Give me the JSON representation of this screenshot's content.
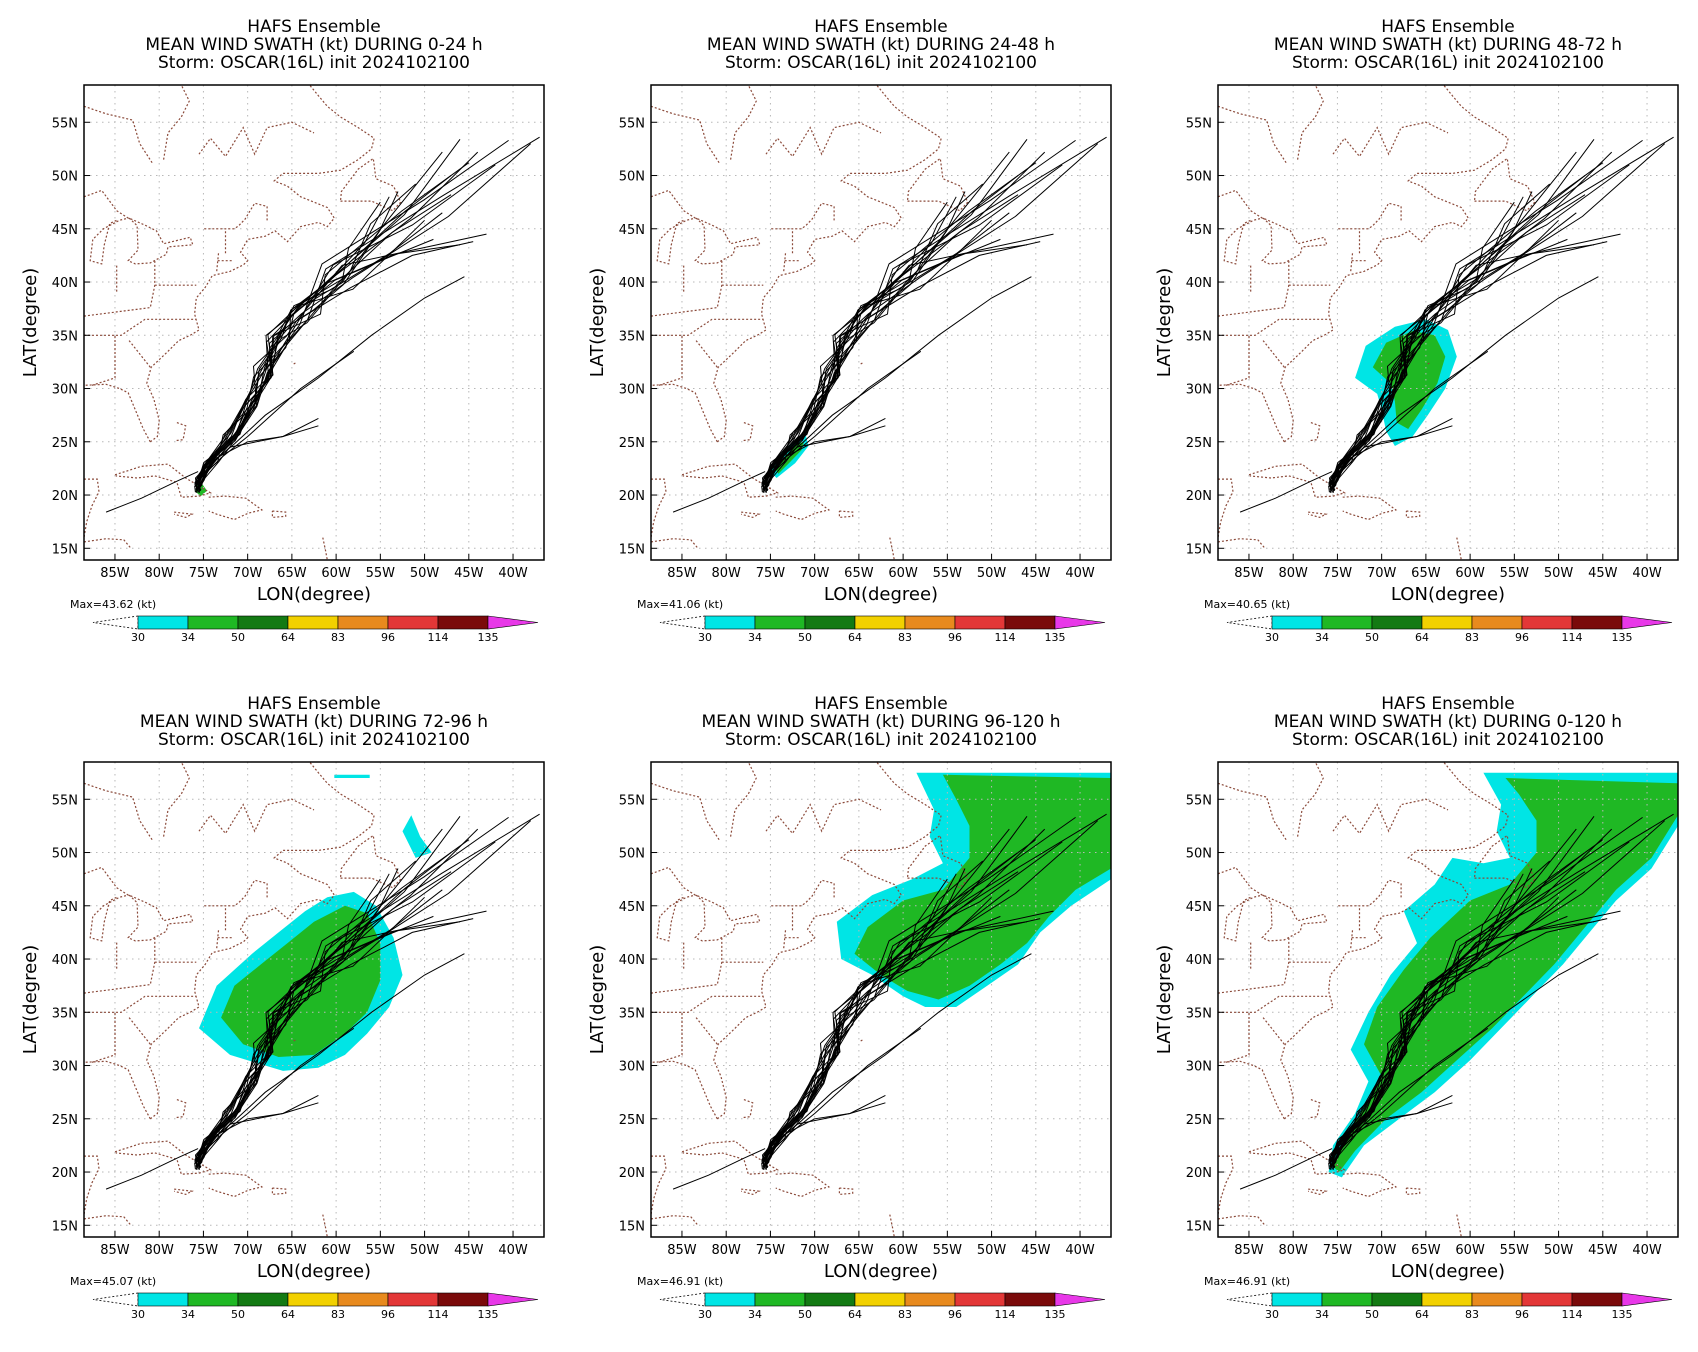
{
  "chart_data": [
    {
      "type": "heatmap",
      "title_lines": [
        "HAFS Ensemble",
        "MEAN WIND SWATH (kt) DURING  0-24 h",
        "Storm: OSCAR(16L) init 2024102100"
      ],
      "xlabel": "LON(degree)",
      "ylabel": "LAT(degree)",
      "xlim": [
        -88.5,
        -36.5
      ],
      "ylim": [
        13.9,
        58.5
      ],
      "xticks": [
        -85,
        -80,
        -75,
        -70,
        -65,
        -60,
        -55,
        -50,
        -45,
        -40
      ],
      "xtick_labels": [
        "85W",
        "80W",
        "75W",
        "70W",
        "65W",
        "60W",
        "55W",
        "50W",
        "45W",
        "40W"
      ],
      "yticks": [
        15,
        20,
        25,
        30,
        35,
        40,
        45,
        50,
        55
      ],
      "ytick_labels": [
        "15N",
        "20N",
        "25N",
        "30N",
        "35N",
        "40N",
        "45N",
        "50N",
        "55N"
      ],
      "max_label": "Max=43.62 (kt)",
      "colorbar_levels": [
        "30",
        "34",
        "50",
        "64",
        "83",
        "96",
        "114",
        "135"
      ],
      "colorbar_colors": [
        "#00e5e5",
        "#1fb824",
        "#137a13",
        "#f2d100",
        "#e88a1e",
        "#e33737",
        "#7a0a0a",
        "#e838e8"
      ],
      "swath_34": [
        [
          -75.8,
          20.9
        ],
        [
          -75.2,
          21.1
        ],
        [
          -74.6,
          20.4
        ],
        [
          -75.3,
          19.9
        ],
        [
          -75.9,
          20.3
        ]
      ],
      "swath_30": [],
      "grid": "dotted"
    },
    {
      "type": "heatmap",
      "title_lines": [
        "HAFS Ensemble",
        "MEAN WIND SWATH (kt) DURING 24-48 h",
        "Storm: OSCAR(16L) init 2024102100"
      ],
      "xlabel": "LON(degree)",
      "ylabel": "LAT(degree)",
      "xlim": [
        -88.5,
        -36.5
      ],
      "ylim": [
        13.9,
        58.5
      ],
      "xticks": [
        -85,
        -80,
        -75,
        -70,
        -65,
        -60,
        -55,
        -50,
        -45,
        -40
      ],
      "xtick_labels": [
        "85W",
        "80W",
        "75W",
        "70W",
        "65W",
        "60W",
        "55W",
        "50W",
        "45W",
        "40W"
      ],
      "yticks": [
        15,
        20,
        25,
        30,
        35,
        40,
        45,
        50,
        55
      ],
      "ytick_labels": [
        "15N",
        "20N",
        "25N",
        "30N",
        "35N",
        "40N",
        "45N",
        "50N",
        "55N"
      ],
      "max_label": "Max=41.06 (kt)",
      "colorbar_levels": [
        "30",
        "34",
        "50",
        "64",
        "83",
        "96",
        "114",
        "135"
      ],
      "colorbar_colors": [
        "#00e5e5",
        "#1fb824",
        "#137a13",
        "#f2d100",
        "#e88a1e",
        "#e33737",
        "#7a0a0a",
        "#e838e8"
      ],
      "swath_30": [
        [
          -75.0,
          22.2
        ],
        [
          -74.0,
          23.8
        ],
        [
          -72.5,
          25.0
        ],
        [
          -71.0,
          25.6
        ],
        [
          -70.7,
          24.6
        ],
        [
          -72.2,
          23.0
        ],
        [
          -74.3,
          21.6
        ]
      ],
      "swath_34": [
        [
          -74.4,
          22.4
        ],
        [
          -73.4,
          23.6
        ],
        [
          -72.0,
          24.8
        ],
        [
          -71.2,
          25.0
        ],
        [
          -71.5,
          24.2
        ],
        [
          -72.9,
          23.0
        ],
        [
          -74.1,
          22.0
        ]
      ],
      "grid": "dotted"
    },
    {
      "type": "heatmap",
      "title_lines": [
        "HAFS Ensemble",
        "MEAN WIND SWATH (kt) DURING 48-72 h",
        "Storm: OSCAR(16L) init 2024102100"
      ],
      "xlabel": "LON(degree)",
      "ylabel": "LAT(degree)",
      "xlim": [
        -88.5,
        -36.5
      ],
      "ylim": [
        13.9,
        58.5
      ],
      "xticks": [
        -85,
        -80,
        -75,
        -70,
        -65,
        -60,
        -55,
        -50,
        -45,
        -40
      ],
      "xtick_labels": [
        "85W",
        "80W",
        "75W",
        "70W",
        "65W",
        "60W",
        "55W",
        "50W",
        "45W",
        "40W"
      ],
      "yticks": [
        15,
        20,
        25,
        30,
        35,
        40,
        45,
        50,
        55
      ],
      "ytick_labels": [
        "15N",
        "20N",
        "25N",
        "30N",
        "35N",
        "40N",
        "45N",
        "50N",
        "55N"
      ],
      "max_label": "Max=40.65 (kt)",
      "colorbar_levels": [
        "30",
        "34",
        "50",
        "64",
        "83",
        "96",
        "114",
        "135"
      ],
      "colorbar_colors": [
        "#00e5e5",
        "#1fb824",
        "#137a13",
        "#f2d100",
        "#e88a1e",
        "#e33737",
        "#7a0a0a",
        "#e838e8"
      ],
      "swath_30": [
        [
          -70.5,
          29.5
        ],
        [
          -73.0,
          31.0
        ],
        [
          -71.8,
          34.0
        ],
        [
          -68.5,
          35.8
        ],
        [
          -65.0,
          36.5
        ],
        [
          -62.5,
          35.5
        ],
        [
          -61.5,
          33.0
        ],
        [
          -62.8,
          30.0
        ],
        [
          -64.8,
          27.5
        ],
        [
          -66.5,
          25.5
        ],
        [
          -68.5,
          24.6
        ],
        [
          -69.5,
          26.0
        ],
        [
          -70.0,
          28.0
        ]
      ],
      "swath_34": [
        [
          -69.0,
          30.5
        ],
        [
          -71.0,
          32.0
        ],
        [
          -69.5,
          34.3
        ],
        [
          -66.5,
          35.4
        ],
        [
          -64.0,
          35.0
        ],
        [
          -62.8,
          33.0
        ],
        [
          -63.7,
          30.5
        ],
        [
          -65.5,
          28.0
        ],
        [
          -67.0,
          26.2
        ],
        [
          -68.3,
          26.8
        ],
        [
          -68.5,
          28.8
        ]
      ],
      "grid": "dotted"
    },
    {
      "type": "heatmap",
      "title_lines": [
        "HAFS Ensemble",
        "MEAN WIND SWATH (kt) DURING 72-96 h",
        "Storm: OSCAR(16L) init 2024102100"
      ],
      "xlabel": "LON(degree)",
      "ylabel": "LAT(degree)",
      "xlim": [
        -88.5,
        -36.5
      ],
      "ylim": [
        13.9,
        58.5
      ],
      "xticks": [
        -85,
        -80,
        -75,
        -70,
        -65,
        -60,
        -55,
        -50,
        -45,
        -40
      ],
      "xtick_labels": [
        "85W",
        "80W",
        "75W",
        "70W",
        "65W",
        "60W",
        "55W",
        "50W",
        "45W",
        "40W"
      ],
      "yticks": [
        15,
        20,
        25,
        30,
        35,
        40,
        45,
        50,
        55
      ],
      "ytick_labels": [
        "15N",
        "20N",
        "25N",
        "30N",
        "35N",
        "40N",
        "45N",
        "50N",
        "55N"
      ],
      "max_label": "Max=45.07 (kt)",
      "colorbar_levels": [
        "30",
        "34",
        "50",
        "64",
        "83",
        "96",
        "114",
        "135"
      ],
      "colorbar_colors": [
        "#00e5e5",
        "#1fb824",
        "#137a13",
        "#f2d100",
        "#e88a1e",
        "#e33737",
        "#7a0a0a",
        "#e838e8"
      ],
      "swath_30": [
        [
          -72.0,
          31.0
        ],
        [
          -75.5,
          33.5
        ],
        [
          -73.5,
          37.5
        ],
        [
          -69.5,
          40.5
        ],
        [
          -66.5,
          42.5
        ],
        [
          -63.5,
          44.5
        ],
        [
          -61.0,
          45.8
        ],
        [
          -58.0,
          46.3
        ],
        [
          -55.5,
          45.0
        ],
        [
          -53.5,
          42.0
        ],
        [
          -52.5,
          38.5
        ],
        [
          -54.0,
          35.5
        ],
        [
          -56.5,
          33.0
        ],
        [
          -59.0,
          31.0
        ],
        [
          -62.0,
          29.8
        ],
        [
          -66.0,
          29.5
        ]
      ],
      "swath_34": [
        [
          -70.5,
          32.0
        ],
        [
          -73.0,
          34.5
        ],
        [
          -71.5,
          37.5
        ],
        [
          -68.5,
          39.5
        ],
        [
          -65.5,
          41.5
        ],
        [
          -62.5,
          43.5
        ],
        [
          -59.0,
          45.0
        ],
        [
          -56.5,
          44.3
        ],
        [
          -55.0,
          41.5
        ],
        [
          -55.0,
          38.0
        ],
        [
          -56.5,
          35.0
        ],
        [
          -59.0,
          33.0
        ],
        [
          -62.5,
          31.0
        ],
        [
          -66.5,
          30.8
        ]
      ],
      "swath_30_extra": [
        [
          [
            -51.5,
            53.5
          ],
          [
            -50.5,
            51.5
          ],
          [
            -49.2,
            50.0
          ],
          [
            -51.0,
            49.5
          ],
          [
            -52.5,
            52.0
          ]
        ],
        [
          [
            -60.2,
            57.3
          ],
          [
            -56.2,
            57.3
          ],
          [
            -56.2,
            57.0
          ],
          [
            -60.2,
            57.0
          ]
        ]
      ],
      "grid": "dotted"
    },
    {
      "type": "heatmap",
      "title_lines": [
        "HAFS Ensemble",
        "MEAN WIND SWATH (kt) DURING 96-120 h",
        "Storm: OSCAR(16L) init 2024102100"
      ],
      "xlabel": "LON(degree)",
      "ylabel": "LAT(degree)",
      "xlim": [
        -88.5,
        -36.5
      ],
      "ylim": [
        13.9,
        58.5
      ],
      "xticks": [
        -85,
        -80,
        -75,
        -70,
        -65,
        -60,
        -55,
        -50,
        -45,
        -40
      ],
      "xtick_labels": [
        "85W",
        "80W",
        "75W",
        "70W",
        "65W",
        "60W",
        "55W",
        "50W",
        "45W",
        "40W"
      ],
      "yticks": [
        15,
        20,
        25,
        30,
        35,
        40,
        45,
        50,
        55
      ],
      "ytick_labels": [
        "15N",
        "20N",
        "25N",
        "30N",
        "35N",
        "40N",
        "45N",
        "50N",
        "55N"
      ],
      "max_label": "Max=46.91 (kt)",
      "colorbar_levels": [
        "30",
        "34",
        "50",
        "64",
        "83",
        "96",
        "114",
        "135"
      ],
      "colorbar_colors": [
        "#00e5e5",
        "#1fb824",
        "#137a13",
        "#f2d100",
        "#e88a1e",
        "#e33737",
        "#7a0a0a",
        "#e838e8"
      ],
      "swath_30": [
        [
          -63.5,
          38.5
        ],
        [
          -67.0,
          40.0
        ],
        [
          -67.5,
          43.5
        ],
        [
          -63.5,
          46.0
        ],
        [
          -59.0,
          47.5
        ],
        [
          -55.5,
          49.0
        ],
        [
          -57.0,
          51.5
        ],
        [
          -56.5,
          54.0
        ],
        [
          -58.5,
          57.5
        ],
        [
          -36.5,
          57.5
        ],
        [
          -36.5,
          47.5
        ],
        [
          -41.0,
          45.0
        ],
        [
          -44.5,
          42.5
        ],
        [
          -47.0,
          39.5
        ],
        [
          -50.5,
          37.5
        ],
        [
          -54.0,
          35.5
        ],
        [
          -57.5,
          35.5
        ],
        [
          -60.0,
          36.5
        ]
      ],
      "swath_34": [
        [
          -62.5,
          38.5
        ],
        [
          -65.5,
          40.5
        ],
        [
          -64.0,
          43.0
        ],
        [
          -60.0,
          45.5
        ],
        [
          -55.5,
          46.5
        ],
        [
          -52.5,
          49.5
        ],
        [
          -52.5,
          52.5
        ],
        [
          -54.0,
          55.0
        ],
        [
          -55.5,
          57.3
        ],
        [
          -36.5,
          57.0
        ],
        [
          -36.5,
          48.5
        ],
        [
          -40.5,
          46.5
        ],
        [
          -43.5,
          44.0
        ],
        [
          -46.0,
          41.5
        ],
        [
          -49.0,
          39.5
        ],
        [
          -52.5,
          37.5
        ],
        [
          -56.0,
          36.2
        ],
        [
          -59.5,
          37.0
        ]
      ],
      "grid": "dotted"
    },
    {
      "type": "heatmap",
      "title_lines": [
        "HAFS Ensemble",
        "MEAN WIND SWATH (kt) DURING  0-120 h",
        "Storm: OSCAR(16L) init 2024102100"
      ],
      "xlabel": "LON(degree)",
      "ylabel": "LAT(degree)",
      "xlim": [
        -88.5,
        -36.5
      ],
      "ylim": [
        13.9,
        58.5
      ],
      "xticks": [
        -85,
        -80,
        -75,
        -70,
        -65,
        -60,
        -55,
        -50,
        -45,
        -40
      ],
      "xtick_labels": [
        "85W",
        "80W",
        "75W",
        "70W",
        "65W",
        "60W",
        "55W",
        "50W",
        "45W",
        "40W"
      ],
      "yticks": [
        15,
        20,
        25,
        30,
        35,
        40,
        45,
        50,
        55
      ],
      "ytick_labels": [
        "15N",
        "20N",
        "25N",
        "30N",
        "35N",
        "40N",
        "45N",
        "50N",
        "55N"
      ],
      "max_label": "Max=46.91 (kt)",
      "colorbar_levels": [
        "30",
        "34",
        "50",
        "64",
        "83",
        "96",
        "114",
        "135"
      ],
      "colorbar_colors": [
        "#00e5e5",
        "#1fb824",
        "#137a13",
        "#f2d100",
        "#e88a1e",
        "#e33737",
        "#7a0a0a",
        "#e838e8"
      ],
      "swath_30": [
        [
          -76.0,
          20.0
        ],
        [
          -75.5,
          22.5
        ],
        [
          -73.0,
          25.5
        ],
        [
          -71.5,
          28.5
        ],
        [
          -73.5,
          31.5
        ],
        [
          -71.5,
          35.0
        ],
        [
          -69.0,
          38.5
        ],
        [
          -66.0,
          41.5
        ],
        [
          -67.5,
          44.5
        ],
        [
          -64.0,
          47.0
        ],
        [
          -62.0,
          49.5
        ],
        [
          -58.5,
          49.0
        ],
        [
          -55.5,
          49.5
        ],
        [
          -57.0,
          52.0
        ],
        [
          -56.5,
          54.5
        ],
        [
          -58.5,
          57.5
        ],
        [
          -36.5,
          57.5
        ],
        [
          -36.5,
          52.5
        ],
        [
          -39.5,
          48.5
        ],
        [
          -43.5,
          45.5
        ],
        [
          -46.5,
          42.5
        ],
        [
          -49.5,
          39.5
        ],
        [
          -53.0,
          36.5
        ],
        [
          -56.5,
          33.5
        ],
        [
          -60.0,
          30.5
        ],
        [
          -64.0,
          27.5
        ],
        [
          -68.0,
          25.0
        ],
        [
          -72.0,
          22.5
        ],
        [
          -74.5,
          19.5
        ]
      ],
      "swath_34": [
        [
          -75.5,
          20.5
        ],
        [
          -74.5,
          22.8
        ],
        [
          -72.0,
          26.0
        ],
        [
          -70.0,
          29.0
        ],
        [
          -72.0,
          32.0
        ],
        [
          -70.5,
          35.5
        ],
        [
          -67.5,
          39.0
        ],
        [
          -64.5,
          42.0
        ],
        [
          -60.0,
          45.5
        ],
        [
          -55.5,
          47.0
        ],
        [
          -52.5,
          50.0
        ],
        [
          -52.5,
          53.0
        ],
        [
          -54.5,
          55.5
        ],
        [
          -56.0,
          57.0
        ],
        [
          -36.5,
          56.5
        ],
        [
          -36.5,
          53.5
        ],
        [
          -39.5,
          49.5
        ],
        [
          -43.5,
          46.5
        ],
        [
          -47.0,
          43.0
        ],
        [
          -50.5,
          39.5
        ],
        [
          -54.0,
          36.5
        ],
        [
          -57.5,
          33.5
        ],
        [
          -61.5,
          30.5
        ],
        [
          -65.5,
          27.5
        ],
        [
          -69.5,
          25.0
        ],
        [
          -73.0,
          22.0
        ],
        [
          -74.8,
          20.0
        ]
      ],
      "grid": "dotted"
    }
  ],
  "track_seed_note_free": true
}
